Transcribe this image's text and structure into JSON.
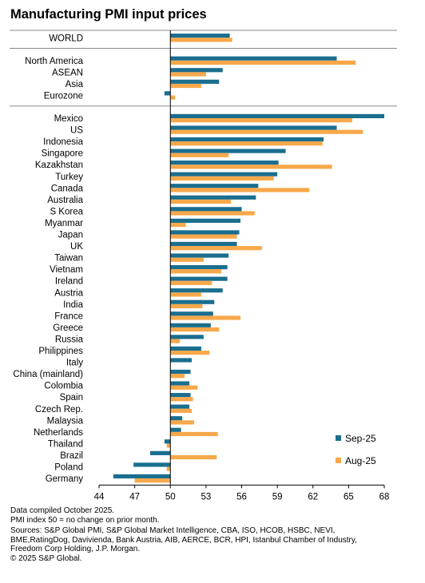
{
  "chart_data": {
    "type": "bar",
    "orientation": "horizontal",
    "title": "Manufacturing PMI input prices",
    "xlabel": "",
    "ylabel": "",
    "xlim": [
      44,
      68
    ],
    "xticks": [
      44,
      47,
      50,
      53,
      56,
      59,
      62,
      65,
      68
    ],
    "baseline": 50,
    "grid": false,
    "legend_position": "bottom-right",
    "groups": [
      [
        "WORLD"
      ],
      [
        "North America",
        "ASEAN",
        "Asia",
        "Eurozone"
      ],
      [
        "Mexico",
        "US",
        "Indonesia",
        "Singapore",
        "Kazakhstan",
        "Turkey",
        "Canada",
        "Australia",
        "S Korea",
        "Myanmar",
        "Japan",
        "UK",
        "Taiwan",
        "Vietnam",
        "Ireland",
        "Austria",
        "India",
        "France",
        "Greece",
        "Russia",
        "Philippines",
        "Italy",
        "China (mainland)",
        "Colombia",
        "Spain",
        "Czech Rep.",
        "Malaysia",
        "Netherlands",
        "Thailand",
        "Brazil",
        "Poland",
        "Germany"
      ]
    ],
    "categories": [
      "WORLD",
      "North America",
      "ASEAN",
      "Asia",
      "Eurozone",
      "Mexico",
      "US",
      "Indonesia",
      "Singapore",
      "Kazakhstan",
      "Turkey",
      "Canada",
      "Australia",
      "S Korea",
      "Myanmar",
      "Japan",
      "UK",
      "Taiwan",
      "Vietnam",
      "Ireland",
      "Austria",
      "India",
      "France",
      "Greece",
      "Russia",
      "Philippines",
      "Italy",
      "China (mainland)",
      "Colombia",
      "Spain",
      "Czech Rep.",
      "Malaysia",
      "Netherlands",
      "Thailand",
      "Brazil",
      "Poland",
      "Germany"
    ],
    "series": [
      {
        "name": "Sep-25",
        "color": "#1a6e8f",
        "values": [
          55.0,
          64.0,
          54.4,
          54.1,
          49.5,
          68.0,
          64.0,
          62.9,
          59.7,
          59.1,
          59.0,
          57.4,
          57.2,
          56.0,
          55.9,
          55.8,
          55.6,
          54.9,
          54.8,
          54.8,
          54.4,
          53.7,
          53.6,
          53.4,
          52.8,
          52.6,
          51.8,
          51.7,
          51.6,
          51.7,
          51.6,
          51.0,
          50.9,
          49.5,
          48.3,
          46.9,
          45.2
        ]
      },
      {
        "name": "Aug-25",
        "color": "#f7a84a",
        "values": [
          55.2,
          65.6,
          53.0,
          52.6,
          50.4,
          65.3,
          66.2,
          62.8,
          54.9,
          63.6,
          58.7,
          61.7,
          55.1,
          57.1,
          51.3,
          55.6,
          57.7,
          52.8,
          54.3,
          53.5,
          52.6,
          52.7,
          55.9,
          54.1,
          50.8,
          53.3,
          50.0,
          51.2,
          52.3,
          51.9,
          51.8,
          52.0,
          54.0,
          49.7,
          53.9,
          49.7,
          47.0
        ]
      }
    ]
  },
  "footnotes": {
    "line1": "Data compiled October 2025.",
    "line2": "PMI index 50 = no change on prior month.",
    "line3": "Sources: S&P Global PMI,  S&P Global Market Intelligence,  CBA, ISO, HCOB, HSBC, NEVI,",
    "line4": "BME,RatingDog,  Davivienda, Bank Austria, AIB, AERCE, BCR, HPI, Istanbul Chamber of Industry,",
    "line5": "Freedom Corp Holding,  J.P. Morgan.",
    "line6": "© 2025 S&P Global."
  }
}
